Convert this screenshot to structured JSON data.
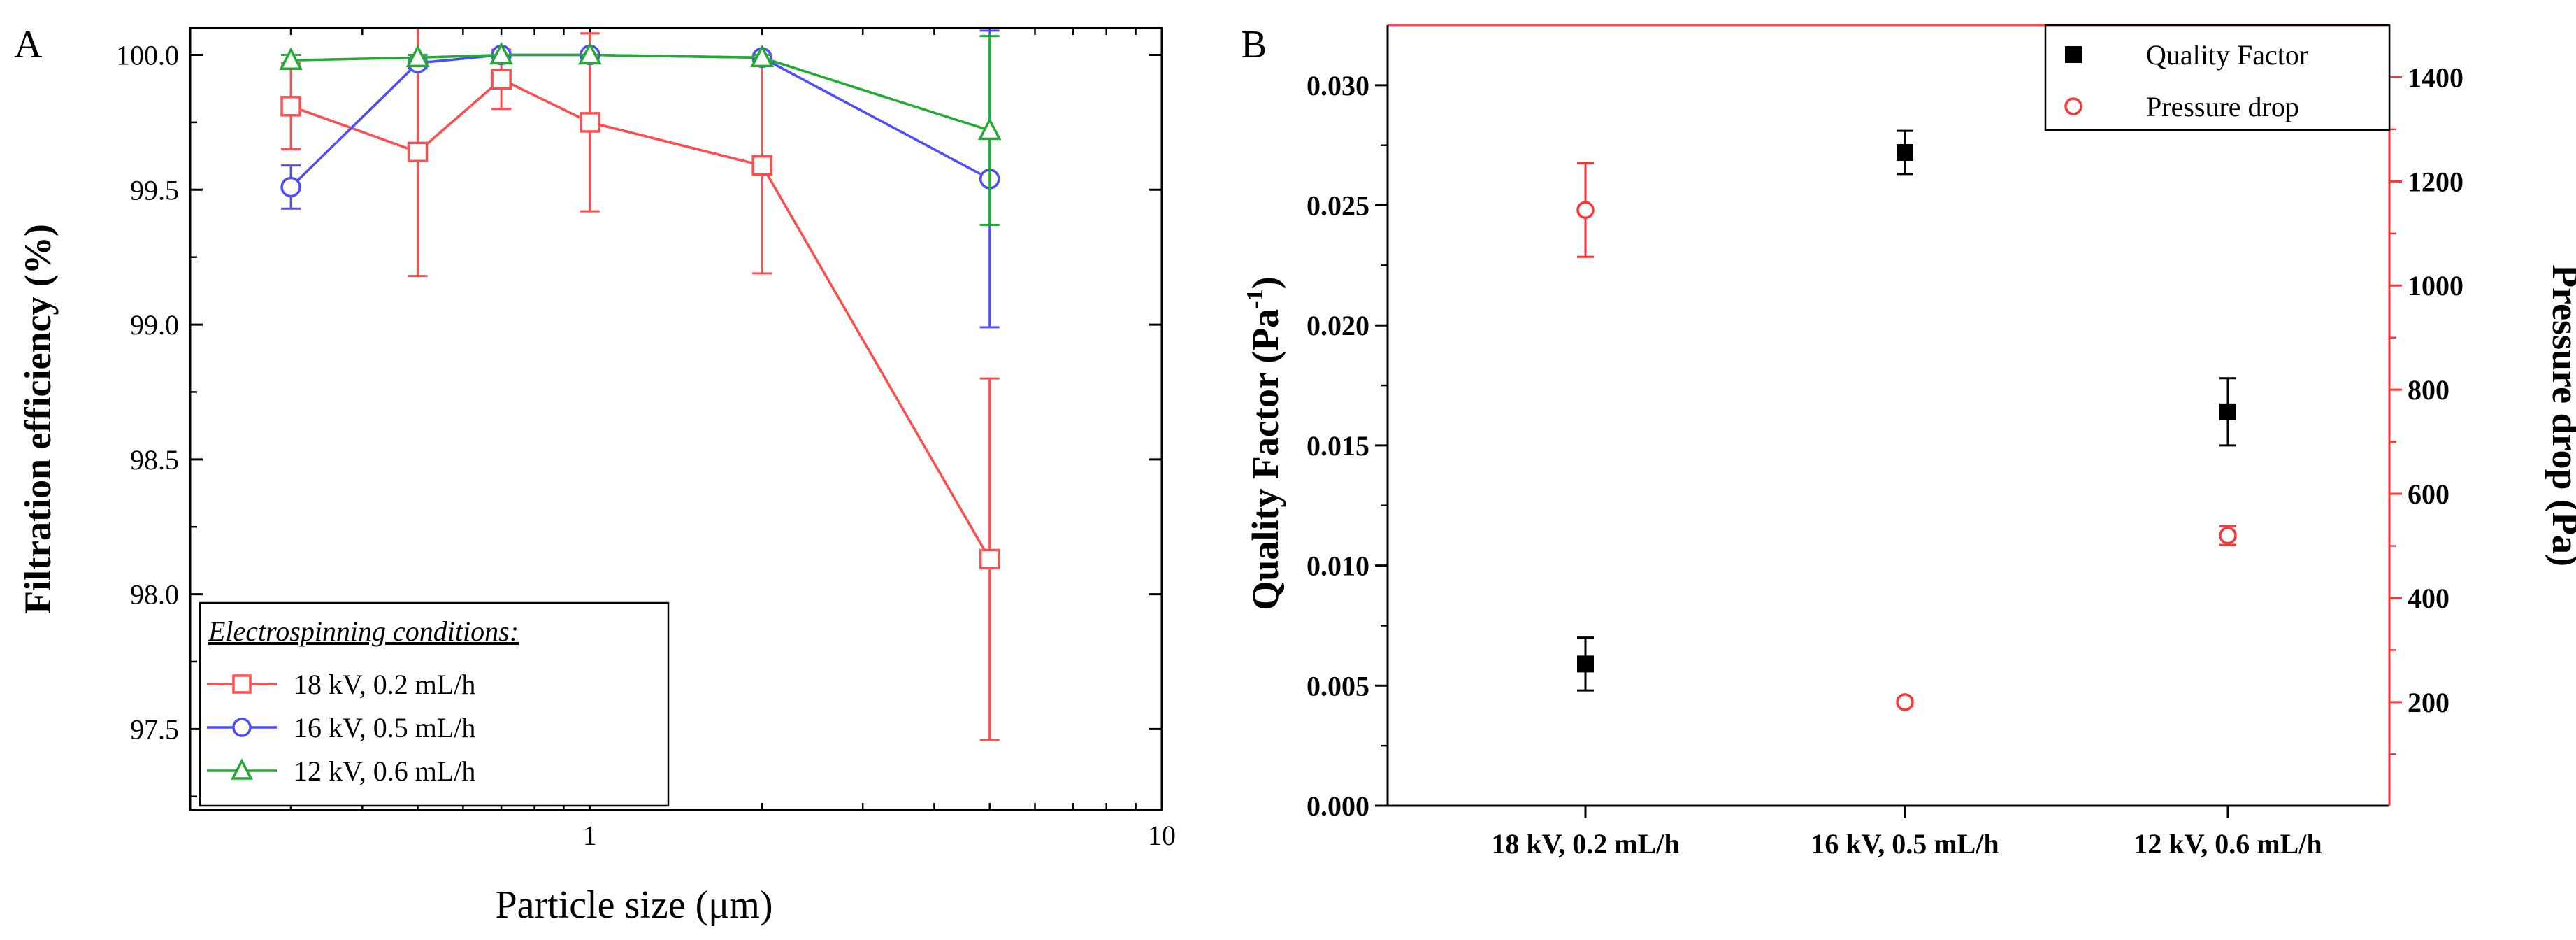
{
  "figure": {
    "panel_a_letter": "A",
    "panel_b_letter": "B"
  },
  "colors": {
    "red": "#ff4d4d",
    "blue": "#4d4dff",
    "green": "#22aa33",
    "black": "#000000",
    "right_axis": "#ff3333"
  },
  "chart_data": [
    {
      "type": "line",
      "panel": "A",
      "title": "",
      "xlabel": "Particle size (μm)",
      "ylabel": "Filtration efficiency (%)",
      "xscale": "log",
      "xlim": [
        0.2,
        10
      ],
      "ylim": [
        97.2,
        100.1
      ],
      "x_ticks": [
        {
          "value": 1,
          "label": "1"
        },
        {
          "value": 10,
          "label": "10"
        }
      ],
      "y_ticks": [
        {
          "value": 97.5,
          "label": "97.5"
        },
        {
          "value": 98.0,
          "label": "98.0"
        },
        {
          "value": 98.5,
          "label": "98.5"
        },
        {
          "value": 99.0,
          "label": "99.0"
        },
        {
          "value": 99.5,
          "label": "99.5"
        },
        {
          "value": 100.0,
          "label": "100.0"
        }
      ],
      "legend": {
        "title": "Electrospinning conditions:",
        "placement": "bottom-left"
      },
      "series": [
        {
          "name": "18 kV, 0.2 mL/h",
          "color": "#ff4d4d",
          "marker": "square",
          "x": [
            0.3,
            0.5,
            0.7,
            1.0,
            2.0,
            5.0
          ],
          "y": [
            99.81,
            99.64,
            99.91,
            99.75,
            99.59,
            98.13
          ],
          "err": [
            0.16,
            0.46,
            0.11,
            0.33,
            0.4,
            0.67
          ]
        },
        {
          "name": "16 kV, 0.5 mL/h",
          "color": "#4d4dff",
          "marker": "circle",
          "x": [
            0.3,
            0.5,
            0.7,
            1.0,
            2.0,
            5.0
          ],
          "y": [
            99.51,
            99.97,
            100.0,
            100.0,
            99.99,
            99.54
          ],
          "err": [
            0.08,
            0.02,
            0.01,
            0.01,
            0.01,
            0.55
          ]
        },
        {
          "name": "12 kV, 0.6 mL/h",
          "color": "#22aa33",
          "marker": "triangle",
          "x": [
            0.3,
            0.5,
            0.7,
            1.0,
            2.0,
            5.0
          ],
          "y": [
            99.98,
            99.99,
            100.0,
            100.0,
            99.99,
            99.72
          ],
          "err": [
            0.02,
            0.01,
            0.0,
            0.0,
            0.01,
            0.35
          ]
        }
      ]
    },
    {
      "type": "scatter",
      "panel": "B",
      "title": "",
      "xlabel": "",
      "ylabel": "Quality Factor (Pa⁻¹)",
      "ylabel_right": "Pressure drop (Pa)",
      "categories": [
        "18 kV, 0.2 mL/h",
        "16 kV, 0.5 mL/h",
        "12 kV, 0.6 mL/h"
      ],
      "ylim": [
        0.0,
        0.0325
      ],
      "ylim_right": [
        1,
        1500
      ],
      "y_ticks": [
        {
          "value": 0.0,
          "label": "0.000"
        },
        {
          "value": 0.005,
          "label": "0.005"
        },
        {
          "value": 0.01,
          "label": "0.010"
        },
        {
          "value": 0.015,
          "label": "0.015"
        },
        {
          "value": 0.02,
          "label": "0.020"
        },
        {
          "value": 0.025,
          "label": "0.025"
        },
        {
          "value": 0.03,
          "label": "0.030"
        }
      ],
      "y_ticks_right": [
        {
          "value": 200,
          "label": "200"
        },
        {
          "value": 400,
          "label": "400"
        },
        {
          "value": 600,
          "label": "600"
        },
        {
          "value": 800,
          "label": "800"
        },
        {
          "value": 1000,
          "label": "1000"
        },
        {
          "value": 1200,
          "label": "1200"
        },
        {
          "value": 1400,
          "label": "1400"
        }
      ],
      "legend": {
        "placement": "top-right"
      },
      "series": [
        {
          "name": "Quality Factor",
          "axis": "left",
          "color": "#000000",
          "marker": "filled-square",
          "values": [
            0.0059,
            0.0272,
            0.0164
          ],
          "err": [
            0.0011,
            0.0009,
            0.0014
          ]
        },
        {
          "name": "Pressure drop",
          "axis": "right",
          "color": "#ff3333",
          "marker": "open-circle",
          "values": [
            1145,
            200,
            520
          ],
          "err": [
            90,
            8,
            18
          ]
        }
      ]
    }
  ]
}
